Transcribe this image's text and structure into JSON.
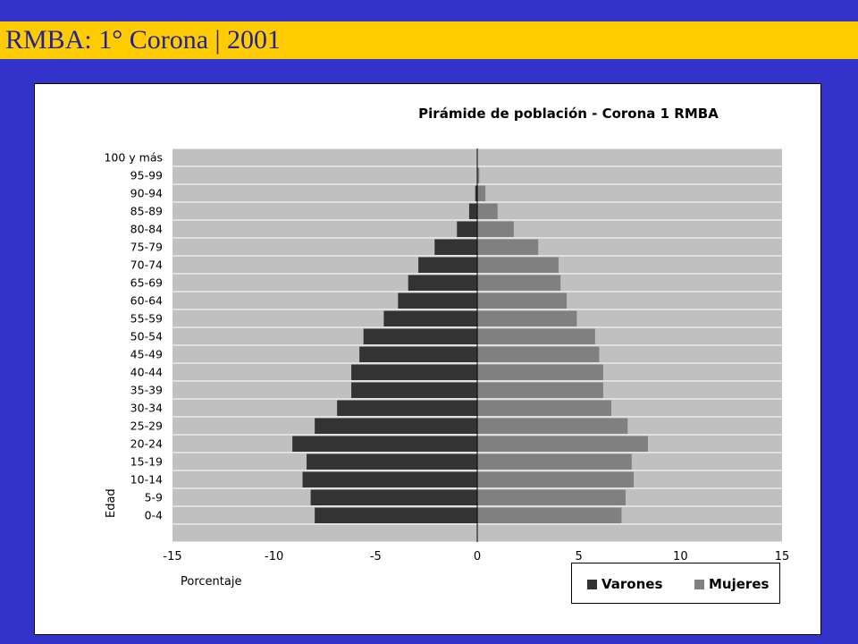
{
  "header": {
    "title": "RMBA: 1° Corona | 2001"
  },
  "colors": {
    "background": "#3333cc",
    "title_bar": "#ffcc00",
    "title_text": "#222299",
    "plot_area": "#c0c0c0",
    "varones": "#333333",
    "mujeres": "#808080",
    "gridline": "#ffffff"
  },
  "chart_data": {
    "type": "bar",
    "orientation": "horizontal",
    "title": "Pirámide de población - Corona 1 RMBA",
    "xlabel": "Porcentaje",
    "ylabel": "Edad",
    "xlim": [
      -15,
      15
    ],
    "x_ticks": [
      "-15",
      "-10",
      "-5",
      "0",
      "5",
      "10",
      "15"
    ],
    "x_tick_values": [
      -15,
      -10,
      -5,
      0,
      5,
      10,
      15
    ],
    "categories": [
      "0-4",
      "5-9",
      "10-14",
      "15-19",
      "20-24",
      "25-29",
      "30-34",
      "35-39",
      "40-44",
      "45-49",
      "50-54",
      "55-59",
      "60-64",
      "65-69",
      "70-74",
      "75-79",
      "80-84",
      "85-89",
      "90-94",
      "95-99",
      "100 y más"
    ],
    "series": [
      {
        "name": "Varones",
        "values": [
          -8.0,
          -8.2,
          -8.6,
          -8.4,
          -9.1,
          -8.0,
          -6.9,
          -6.2,
          -6.2,
          -5.8,
          -5.6,
          -4.6,
          -3.9,
          -3.4,
          -2.9,
          -2.1,
          -1.0,
          -0.4,
          -0.1,
          0,
          0
        ]
      },
      {
        "name": "Mujeres",
        "values": [
          7.1,
          7.3,
          7.7,
          7.6,
          8.4,
          7.4,
          6.6,
          6.2,
          6.2,
          6.0,
          5.8,
          4.9,
          4.4,
          4.1,
          4.0,
          3.0,
          1.8,
          1.0,
          0.4,
          0.1,
          0
        ]
      }
    ],
    "legend": "bottom-right",
    "grid": true
  }
}
